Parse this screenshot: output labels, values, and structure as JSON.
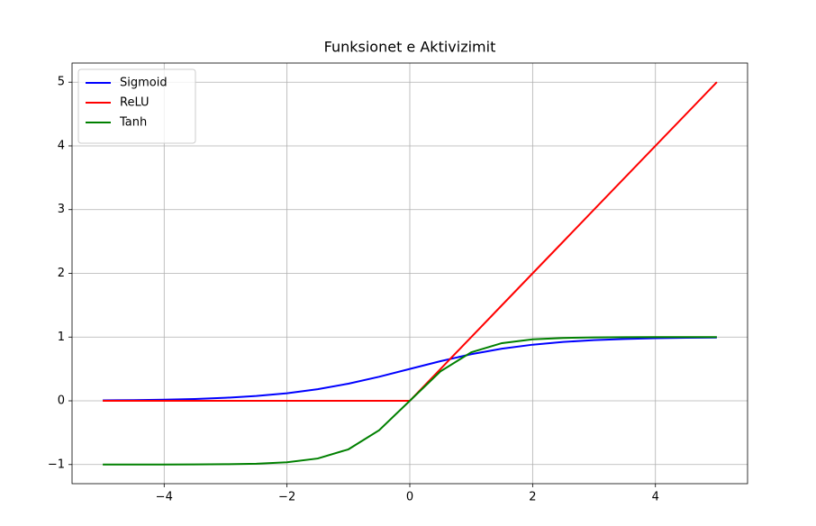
{
  "chart_data": {
    "type": "line",
    "title": "Funksionet e Aktivizimit",
    "x": [
      -5,
      -4.5,
      -4,
      -3.5,
      -3,
      -2.5,
      -2,
      -1.5,
      -1,
      -0.5,
      0,
      0.5,
      1,
      1.5,
      2,
      2.5,
      3,
      3.5,
      4,
      4.5,
      5
    ],
    "series": [
      {
        "name": "Sigmoid",
        "color": "#0000ff",
        "values": [
          0.0067,
          0.011,
          0.018,
          0.0293,
          0.0474,
          0.0759,
          0.1192,
          0.1824,
          0.2689,
          0.3775,
          0.5,
          0.6225,
          0.7311,
          0.8176,
          0.8808,
          0.9241,
          0.9526,
          0.9707,
          0.982,
          0.989,
          0.9933
        ]
      },
      {
        "name": "ReLU",
        "color": "#ff0000",
        "values": [
          0,
          0,
          0,
          0,
          0,
          0,
          0,
          0,
          0,
          0,
          0,
          0.5,
          1,
          1.5,
          2,
          2.5,
          3,
          3.5,
          4,
          4.5,
          5
        ]
      },
      {
        "name": "Tanh",
        "color": "#008000",
        "values": [
          -0.9999,
          -0.9998,
          -0.9993,
          -0.9982,
          -0.9951,
          -0.9866,
          -0.964,
          -0.9051,
          -0.7616,
          -0.4621,
          0,
          0.4621,
          0.7616,
          0.9051,
          0.964,
          0.9866,
          0.9951,
          0.9982,
          0.9993,
          0.9998,
          0.9999
        ]
      }
    ],
    "xlim": [
      -5.5,
      5.5
    ],
    "xticks": [
      {
        "value": -4,
        "label": "−4"
      },
      {
        "value": -2,
        "label": "−2"
      },
      0,
      2,
      4
    ],
    "ylim": [
      -1.3,
      5.3
    ],
    "yticks": [
      {
        "value": -1,
        "label": "−1"
      },
      0,
      1,
      2,
      3,
      4,
      5
    ],
    "grid": true,
    "legend": "upper left"
  }
}
